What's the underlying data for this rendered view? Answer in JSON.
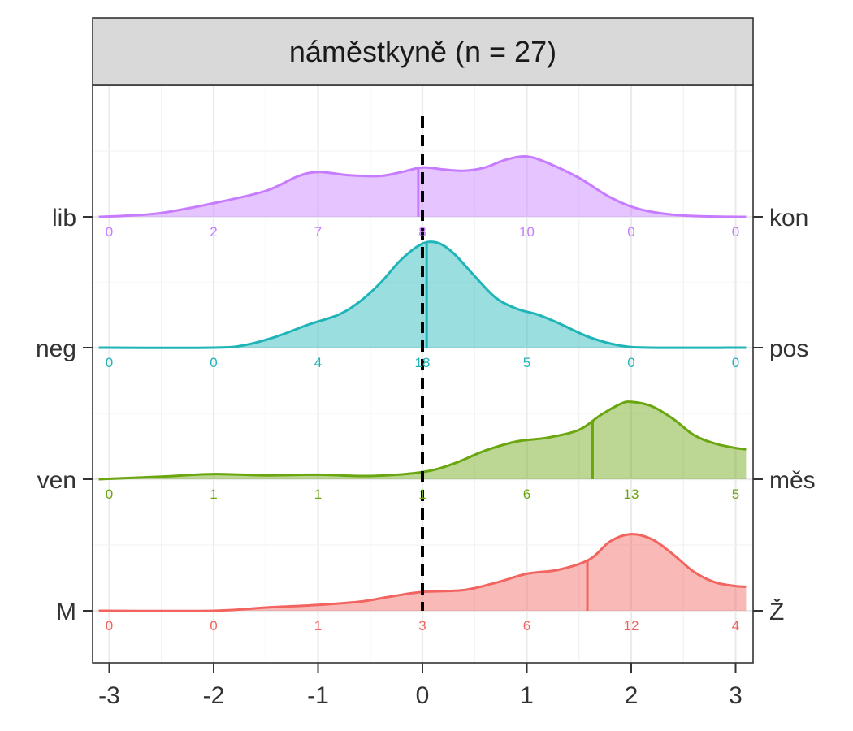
{
  "chart_data": {
    "type": "ridgeline",
    "title": "náměstkyně (n = 27)",
    "xlim": [
      -3.1,
      3.1
    ],
    "x_ticks": [
      -3,
      -2,
      -1,
      0,
      1,
      2,
      3
    ],
    "x_tick_labels": [
      "-3",
      "-2",
      "-1",
      "0",
      "1",
      "2",
      "3"
    ],
    "grid": true,
    "reference_line": {
      "x": 0,
      "style": "dashed"
    },
    "count_positions": [
      -3,
      -2,
      -1,
      0,
      1,
      2,
      3
    ],
    "series": [
      {
        "left_label": "lib",
        "right_label": "kon",
        "color": "#C77CFF",
        "median": -0.04,
        "counts": [
          "0",
          "2",
          "7",
          "8",
          "10",
          "0",
          "0"
        ],
        "density": [
          [
            -3.1,
            0
          ],
          [
            -2.8,
            0.02
          ],
          [
            -2.5,
            0.06
          ],
          [
            -2.0,
            0.21
          ],
          [
            -1.5,
            0.4
          ],
          [
            -1.2,
            0.62
          ],
          [
            -1.0,
            0.69
          ],
          [
            -0.7,
            0.64
          ],
          [
            -0.4,
            0.63
          ],
          [
            -0.2,
            0.69
          ],
          [
            0.0,
            0.76
          ],
          [
            0.2,
            0.73
          ],
          [
            0.4,
            0.71
          ],
          [
            0.6,
            0.76
          ],
          [
            0.8,
            0.88
          ],
          [
            1.0,
            0.93
          ],
          [
            1.2,
            0.83
          ],
          [
            1.5,
            0.6
          ],
          [
            1.8,
            0.3
          ],
          [
            2.1,
            0.11
          ],
          [
            2.5,
            0.02
          ],
          [
            3.1,
            0
          ]
        ]
      },
      {
        "left_label": "neg",
        "right_label": "pos",
        "color": "#1FB5B8",
        "median": 0.04,
        "counts": [
          "0",
          "0",
          "4",
          "18",
          "5",
          "0",
          "0"
        ],
        "density": [
          [
            -3.1,
            0
          ],
          [
            -2.0,
            0
          ],
          [
            -1.7,
            0.04
          ],
          [
            -1.4,
            0.17
          ],
          [
            -1.1,
            0.35
          ],
          [
            -0.8,
            0.51
          ],
          [
            -0.6,
            0.71
          ],
          [
            -0.4,
            1.0
          ],
          [
            -0.2,
            1.36
          ],
          [
            0.0,
            1.6
          ],
          [
            0.15,
            1.61
          ],
          [
            0.3,
            1.45
          ],
          [
            0.5,
            1.1
          ],
          [
            0.7,
            0.77
          ],
          [
            0.9,
            0.6
          ],
          [
            1.1,
            0.51
          ],
          [
            1.3,
            0.38
          ],
          [
            1.6,
            0.16
          ],
          [
            1.9,
            0.03
          ],
          [
            2.2,
            0
          ],
          [
            3.1,
            0
          ]
        ]
      },
      {
        "left_label": "ven",
        "right_label": "měs",
        "color": "#6AA60F",
        "median": 1.63,
        "counts": [
          "0",
          "1",
          "1",
          "1",
          "6",
          "13",
          "5"
        ],
        "density": [
          [
            -3.1,
            0
          ],
          [
            -2.5,
            0.04
          ],
          [
            -2.0,
            0.08
          ],
          [
            -1.5,
            0.06
          ],
          [
            -1.0,
            0.07
          ],
          [
            -0.5,
            0.05
          ],
          [
            0.0,
            0.11
          ],
          [
            0.3,
            0.24
          ],
          [
            0.6,
            0.44
          ],
          [
            0.9,
            0.58
          ],
          [
            1.2,
            0.64
          ],
          [
            1.5,
            0.76
          ],
          [
            1.7,
            0.98
          ],
          [
            1.9,
            1.16
          ],
          [
            2.0,
            1.19
          ],
          [
            2.2,
            1.12
          ],
          [
            2.4,
            0.93
          ],
          [
            2.6,
            0.68
          ],
          [
            2.8,
            0.55
          ],
          [
            3.0,
            0.48
          ],
          [
            3.1,
            0.46
          ]
        ]
      },
      {
        "left_label": "M",
        "right_label": "Ž",
        "color": "#F26460",
        "median": 1.58,
        "counts": [
          "0",
          "0",
          "1",
          "3",
          "6",
          "12",
          "4"
        ],
        "density": [
          [
            -3.1,
            0
          ],
          [
            -2.0,
            0
          ],
          [
            -1.5,
            0.05
          ],
          [
            -1.0,
            0.09
          ],
          [
            -0.6,
            0.14
          ],
          [
            -0.3,
            0.22
          ],
          [
            0.0,
            0.29
          ],
          [
            0.4,
            0.32
          ],
          [
            0.7,
            0.43
          ],
          [
            1.0,
            0.57
          ],
          [
            1.3,
            0.63
          ],
          [
            1.6,
            0.79
          ],
          [
            1.8,
            1.07
          ],
          [
            2.0,
            1.18
          ],
          [
            2.2,
            1.1
          ],
          [
            2.4,
            0.87
          ],
          [
            2.6,
            0.6
          ],
          [
            2.8,
            0.44
          ],
          [
            3.0,
            0.38
          ],
          [
            3.1,
            0.37
          ]
        ]
      }
    ]
  }
}
